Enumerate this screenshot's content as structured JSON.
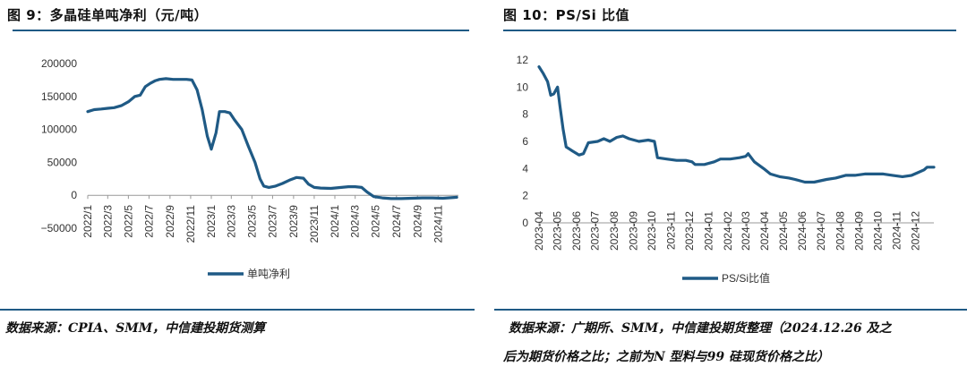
{
  "colors": {
    "line": "#1f5a85",
    "axis": "#999999",
    "rule": "#1f5a85"
  },
  "left": {
    "title": "图 9：多晶硅单吨净利（元/吨）",
    "source": "数据来源：CPIA、SMM，中信建投期货测算"
  },
  "right": {
    "title": "图 10：PS/Si 比值",
    "source_line1": "数据来源：广期所、SMM，中信建投期货整理（2024.12.26 及之",
    "source_line2": "后为期货价格之比；之前为N 型料与99 硅现货价格之比）"
  },
  "chart_data": [
    {
      "type": "line",
      "title": "",
      "xlabel": "",
      "ylabel": "",
      "ylim": [
        -50000,
        200000
      ],
      "yticks": [
        -50000,
        0,
        50000,
        100000,
        150000,
        200000
      ],
      "x_tick_labels": [
        "2022/1",
        "2022/3",
        "2022/5",
        "2022/7",
        "2022/9",
        "2022/11",
        "2023/1",
        "2023/3",
        "2023/5",
        "2023/7",
        "2023/9",
        "2023/11",
        "2024/1",
        "2024/3",
        "2024/5",
        "2024/7",
        "2024/9",
        "2024/11"
      ],
      "legend_position": "bottom",
      "grid": false,
      "series": [
        {
          "name": "单吨净利",
          "points": [
            [
              "2022-01-01",
              127000
            ],
            [
              "2022-01-20",
              130000
            ],
            [
              "2022-02-10",
              131000
            ],
            [
              "2022-03-01",
              132000
            ],
            [
              "2022-03-20",
              133000
            ],
            [
              "2022-04-10",
              136000
            ],
            [
              "2022-05-01",
              142000
            ],
            [
              "2022-05-20",
              150000
            ],
            [
              "2022-06-05",
              152000
            ],
            [
              "2022-06-20",
              165000
            ],
            [
              "2022-07-05",
              170000
            ],
            [
              "2022-07-20",
              174000
            ],
            [
              "2022-08-01",
              176000
            ],
            [
              "2022-08-20",
              177000
            ],
            [
              "2022-09-10",
              176000
            ],
            [
              "2022-10-01",
              176000
            ],
            [
              "2022-10-20",
              176000
            ],
            [
              "2022-11-05",
              175000
            ],
            [
              "2022-11-20",
              160000
            ],
            [
              "2022-12-05",
              130000
            ],
            [
              "2022-12-20",
              90000
            ],
            [
              "2023-01-01",
              70000
            ],
            [
              "2023-01-15",
              95000
            ],
            [
              "2023-01-25",
              127000
            ],
            [
              "2023-02-10",
              127000
            ],
            [
              "2023-02-25",
              125000
            ],
            [
              "2023-03-10",
              115000
            ],
            [
              "2023-04-01",
              100000
            ],
            [
              "2023-04-20",
              75000
            ],
            [
              "2023-05-10",
              50000
            ],
            [
              "2023-05-25",
              25000
            ],
            [
              "2023-06-05",
              14000
            ],
            [
              "2023-06-20",
              12000
            ],
            [
              "2023-07-10",
              14000
            ],
            [
              "2023-07-30",
              18000
            ],
            [
              "2023-08-20",
              23000
            ],
            [
              "2023-09-10",
              27000
            ],
            [
              "2023-09-30",
              26000
            ],
            [
              "2023-10-15",
              17000
            ],
            [
              "2023-11-01",
              12000
            ],
            [
              "2023-11-20",
              11000
            ],
            [
              "2023-12-20",
              10500
            ],
            [
              "2024-01-20",
              12000
            ],
            [
              "2024-02-10",
              13000
            ],
            [
              "2024-03-01",
              13000
            ],
            [
              "2024-03-20",
              12000
            ],
            [
              "2024-04-05",
              5000
            ],
            [
              "2024-04-25",
              -2000
            ],
            [
              "2024-05-20",
              -4000
            ],
            [
              "2024-06-15",
              -5000
            ],
            [
              "2024-07-15",
              -5000
            ],
            [
              "2024-08-15",
              -4500
            ],
            [
              "2024-09-15",
              -4000
            ],
            [
              "2024-10-15",
              -4000
            ],
            [
              "2024-11-15",
              -4500
            ],
            [
              "2024-12-26",
              -3000
            ]
          ]
        }
      ]
    },
    {
      "type": "line",
      "title": "",
      "xlabel": "",
      "ylabel": "",
      "ylim": [
        0,
        12
      ],
      "yticks": [
        0,
        2,
        4,
        6,
        8,
        10,
        12
      ],
      "x_tick_labels": [
        "2023-04",
        "2023-05",
        "2023-06",
        "2023-07",
        "2023-08",
        "2023-09",
        "2023-10",
        "2023-11",
        "2023-12",
        "2024-01",
        "2024-02",
        "2024-03",
        "2024-04",
        "2024-05",
        "2024-06",
        "2024-07",
        "2024-08",
        "2024-09",
        "2024-10",
        "2024-11",
        "2024-12"
      ],
      "legend_position": "bottom",
      "grid": false,
      "series": [
        {
          "name": "PS/Si比值",
          "points": [
            [
              "2023-04-01",
              11.5
            ],
            [
              "2023-04-08",
              11.0
            ],
            [
              "2023-04-15",
              10.4
            ],
            [
              "2023-04-20",
              9.4
            ],
            [
              "2023-04-25",
              9.5
            ],
            [
              "2023-05-01",
              10.0
            ],
            [
              "2023-05-05",
              8.6
            ],
            [
              "2023-05-10",
              6.9
            ],
            [
              "2023-05-15",
              5.6
            ],
            [
              "2023-05-25",
              5.3
            ],
            [
              "2023-06-05",
              5.0
            ],
            [
              "2023-06-12",
              5.1
            ],
            [
              "2023-06-20",
              5.9
            ],
            [
              "2023-07-05",
              6.0
            ],
            [
              "2023-07-15",
              6.2
            ],
            [
              "2023-07-25",
              6.0
            ],
            [
              "2023-08-05",
              6.3
            ],
            [
              "2023-08-15",
              6.4
            ],
            [
              "2023-08-25",
              6.2
            ],
            [
              "2023-09-10",
              6.0
            ],
            [
              "2023-09-25",
              6.1
            ],
            [
              "2023-10-05",
              6.0
            ],
            [
              "2023-10-10",
              4.8
            ],
            [
              "2023-10-25",
              4.7
            ],
            [
              "2023-11-10",
              4.6
            ],
            [
              "2023-11-25",
              4.6
            ],
            [
              "2023-12-05",
              4.5
            ],
            [
              "2023-12-10",
              4.3
            ],
            [
              "2023-12-25",
              4.3
            ],
            [
              "2024-01-10",
              4.5
            ],
            [
              "2024-01-20",
              4.7
            ],
            [
              "2024-02-05",
              4.7
            ],
            [
              "2024-02-20",
              4.8
            ],
            [
              "2024-03-01",
              4.9
            ],
            [
              "2024-03-05",
              5.1
            ],
            [
              "2024-03-15",
              4.5
            ],
            [
              "2024-03-30",
              4.0
            ],
            [
              "2024-04-10",
              3.6
            ],
            [
              "2024-04-25",
              3.4
            ],
            [
              "2024-05-10",
              3.3
            ],
            [
              "2024-05-20",
              3.2
            ],
            [
              "2024-06-05",
              3.0
            ],
            [
              "2024-06-20",
              3.0
            ],
            [
              "2024-07-10",
              3.2
            ],
            [
              "2024-07-25",
              3.3
            ],
            [
              "2024-08-10",
              3.5
            ],
            [
              "2024-08-25",
              3.5
            ],
            [
              "2024-09-10",
              3.6
            ],
            [
              "2024-09-25",
              3.6
            ],
            [
              "2024-10-10",
              3.6
            ],
            [
              "2024-10-25",
              3.5
            ],
            [
              "2024-11-10",
              3.4
            ],
            [
              "2024-11-25",
              3.5
            ],
            [
              "2024-12-05",
              3.7
            ],
            [
              "2024-12-15",
              3.9
            ],
            [
              "2024-12-20",
              4.1
            ],
            [
              "2024-12-31",
              4.1
            ]
          ]
        }
      ]
    }
  ]
}
